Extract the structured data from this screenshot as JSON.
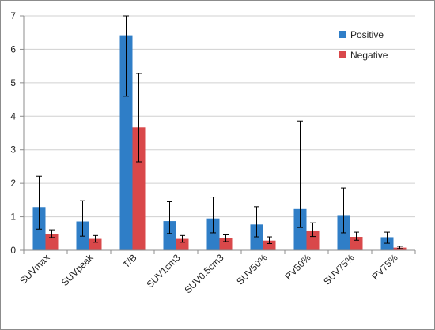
{
  "chart_data": {
    "type": "bar",
    "title": "",
    "xlabel": "",
    "ylabel": "",
    "categories": [
      "SUVmax",
      "SUVpeak",
      "T/B",
      "SUV1cm3",
      "SUV0.5cm3",
      "SUV50%",
      "PV50%",
      "SUV75%",
      "PV75%"
    ],
    "ylim": [
      0,
      7
    ],
    "yticks": [
      "0",
      "1",
      "2",
      "3",
      "4",
      "5",
      "6",
      "7"
    ],
    "grid": "horizontal",
    "legend_position": "top-right",
    "series": [
      {
        "name": "Positive",
        "color": "#2f7ec7",
        "values": [
          1.29,
          0.86,
          6.42,
          0.87,
          0.95,
          0.77,
          1.23,
          1.05,
          0.39
        ],
        "error_low": [
          0.63,
          0.42,
          4.6,
          0.5,
          0.52,
          0.4,
          0.68,
          0.52,
          0.21
        ],
        "error_high": [
          2.21,
          1.48,
          7.0,
          1.45,
          1.59,
          1.3,
          3.86,
          1.86,
          0.54
        ]
      },
      {
        "name": "Negative",
        "color": "#d9484a",
        "values": [
          0.49,
          0.34,
          3.67,
          0.34,
          0.36,
          0.29,
          0.59,
          0.4,
          0.08
        ],
        "error_low": [
          0.38,
          0.24,
          2.64,
          0.24,
          0.26,
          0.2,
          0.41,
          0.3,
          0.05
        ],
        "error_high": [
          0.61,
          0.44,
          5.28,
          0.44,
          0.46,
          0.4,
          0.82,
          0.54,
          0.12
        ]
      }
    ]
  }
}
